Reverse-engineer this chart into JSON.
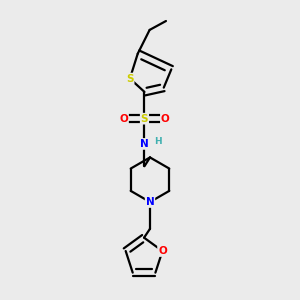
{
  "background_color": "#ebebeb",
  "atom_colors": {
    "S_ring": "#cccc00",
    "S_sulfonyl": "#cccc00",
    "O": "#ff0000",
    "N": "#0000ff",
    "C": "#000000",
    "H": "#40b0b0"
  },
  "lw": 1.6
}
